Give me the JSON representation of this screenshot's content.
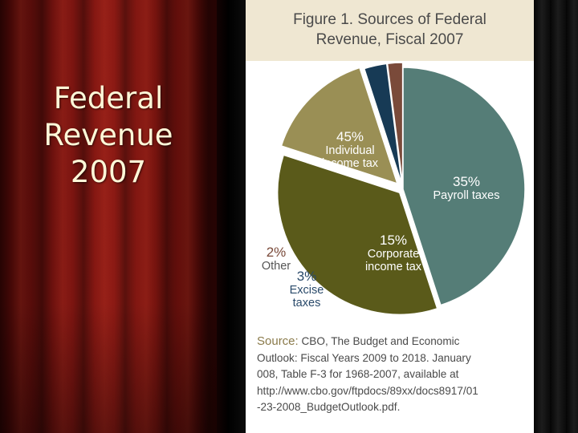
{
  "slide": {
    "title_lines": [
      "Federal",
      "Revenue",
      "2007"
    ]
  },
  "figure": {
    "title_lines": [
      "Figure 1. Sources of Federal",
      "Revenue, Fiscal 2007"
    ],
    "source_label": "Source:",
    "source_lines": [
      "CBO, The Budget and Economic",
      "Outlook: Fiscal Years 2009 to 2018. January",
      "008, Table F-3 for 1968-2007, available at",
      "http://www.cbo.gov/ftpdocs/89xx/docs8917/01",
      "-23-2008_BudgetOutlook.pdf."
    ]
  },
  "chart_data": {
    "type": "pie",
    "title": "Figure 1. Sources of Federal Revenue, Fiscal 2007",
    "slices": [
      {
        "pct_label": "45%",
        "label_lines": [
          "Individual",
          "income tax"
        ],
        "value": 45,
        "color": "#557d77",
        "exploded": false
      },
      {
        "pct_label": "35%",
        "label_lines": [
          "Payroll taxes"
        ],
        "value": 35,
        "color": "#5a5a1a",
        "exploded": true
      },
      {
        "pct_label": "15%",
        "label_lines": [
          "Corporate",
          "income tax"
        ],
        "value": 15,
        "color": "#9a8f55",
        "exploded": true
      },
      {
        "pct_label": "3%",
        "label_lines": [
          "Excise",
          "taxes"
        ],
        "value": 3,
        "color": "#173a55",
        "exploded": true
      },
      {
        "pct_label": "2%",
        "label_lines": [
          "Other"
        ],
        "value": 2,
        "color": "#7a4a3a",
        "exploded": true
      }
    ],
    "colors": {
      "pct_text": "#ffffff",
      "label_text": "#ffffff",
      "outside_pct_text": "#7a4a3a",
      "outside_label_text": "#2a4a6a"
    }
  }
}
